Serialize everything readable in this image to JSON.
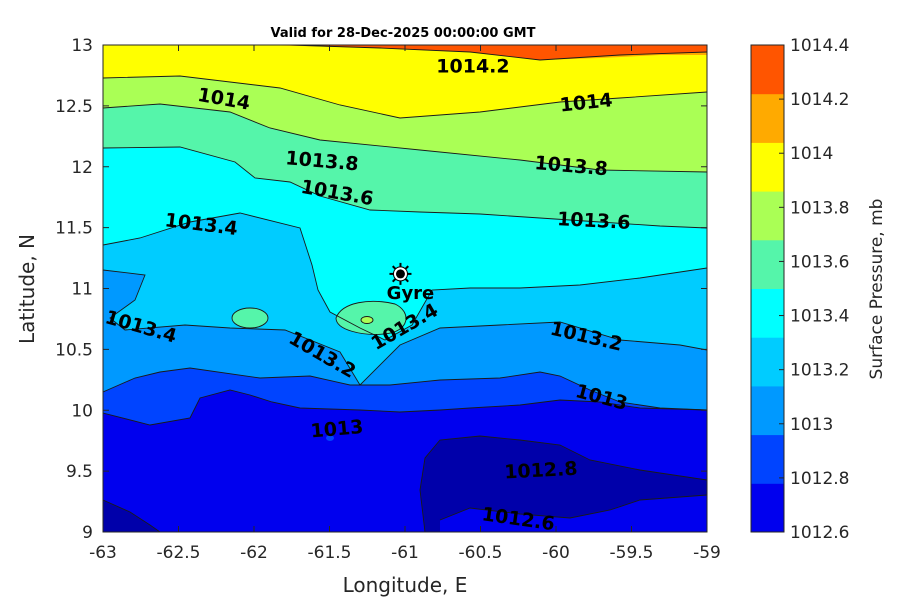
{
  "chart_data": {
    "type": "contour",
    "title": "Valid for 28-Dec-2025 00:00:00 GMT",
    "xlabel": "Longitude, E",
    "ylabel": "Latitude, N",
    "xlim": [
      -63,
      -59
    ],
    "ylim": [
      9,
      13
    ],
    "xticks": [
      "-63",
      "-62.5",
      "-62",
      "-61.5",
      "-61",
      "-60.5",
      "-60",
      "-59.5",
      "-59"
    ],
    "yticks": [
      "13",
      "12.5",
      "12",
      "11.5",
      "11",
      "10.5",
      "10",
      "9.5",
      "9"
    ],
    "colorbar": {
      "label": "Surface Pressure, mb",
      "levels": [
        1012.6,
        1012.8,
        1013,
        1013.2,
        1013.4,
        1013.6,
        1013.8,
        1014,
        1014.2,
        1014.4
      ],
      "tick_labels": [
        "1014.4",
        "1014.2",
        "1014",
        "1013.8",
        "1013.6",
        "1013.4",
        "1013.2",
        "1013",
        "1012.8",
        "1012.6"
      ],
      "colors": [
        "#0000aa",
        "#0000ee",
        "#0044ff",
        "#0099ff",
        "#00ccff",
        "#00ffff",
        "#55f5aa",
        "#aaff55",
        "#ffff00",
        "#ffaa00",
        "#ff5500"
      ]
    },
    "contour_labels": [
      {
        "text": "1014.2",
        "lon": -60.55,
        "lat": 12.82,
        "angle": 0
      },
      {
        "text": "1014",
        "lon": -62.2,
        "lat": 12.55,
        "angle": 10
      },
      {
        "text": "1014",
        "lon": -59.8,
        "lat": 12.52,
        "angle": -6
      },
      {
        "text": "1013.8",
        "lon": -61.55,
        "lat": 12.04,
        "angle": 5
      },
      {
        "text": "1013.8",
        "lon": -59.9,
        "lat": 12.0,
        "angle": 5
      },
      {
        "text": "1013.6",
        "lon": -61.45,
        "lat": 11.78,
        "angle": 10
      },
      {
        "text": "1013.6",
        "lon": -59.75,
        "lat": 11.55,
        "angle": 3
      },
      {
        "text": "1013.4",
        "lon": -62.35,
        "lat": 11.52,
        "angle": 7
      },
      {
        "text": "1013.4",
        "lon": -62.75,
        "lat": 10.68,
        "angle": 16
      },
      {
        "text": "1013.4",
        "lon": -61.0,
        "lat": 10.68,
        "angle": -30
      },
      {
        "text": "1013.2",
        "lon": -61.55,
        "lat": 10.45,
        "angle": 30
      },
      {
        "text": "1013.2",
        "lon": -59.8,
        "lat": 10.6,
        "angle": 13
      },
      {
        "text": "1013",
        "lon": -59.7,
        "lat": 10.1,
        "angle": 15
      },
      {
        "text": "1013",
        "lon": -61.45,
        "lat": 9.84,
        "angle": -5
      },
      {
        "text": "1012.8",
        "lon": -60.1,
        "lat": 9.5,
        "angle": -3
      },
      {
        "text": "1012.6",
        "lon": -60.25,
        "lat": 9.1,
        "angle": 8
      }
    ],
    "marker": {
      "label": "Gyre",
      "lon": -61.03,
      "lat": 11.12
    }
  }
}
